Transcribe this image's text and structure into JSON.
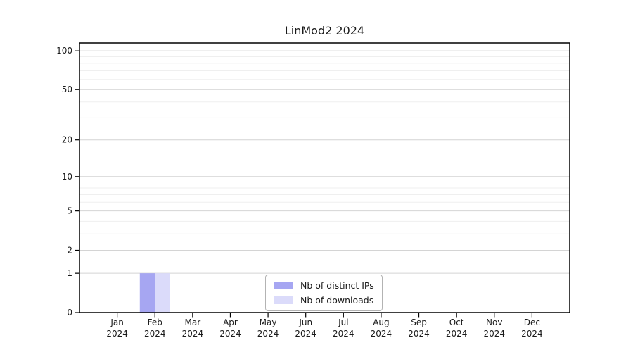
{
  "chart_data": {
    "type": "bar",
    "title": "LinMod2 2024",
    "x": {
      "categories": [
        "Jan",
        "Feb",
        "Mar",
        "Apr",
        "May",
        "Jun",
        "Jul",
        "Aug",
        "Sep",
        "Oct",
        "Nov",
        "Dec"
      ],
      "year_label": "2024"
    },
    "series": [
      {
        "name": "Nb of distinct IPs",
        "color": "#a6a6f2",
        "values": [
          0,
          1,
          0,
          0,
          0,
          0,
          0,
          0,
          0,
          0,
          0,
          0
        ]
      },
      {
        "name": "Nb of downloads",
        "color": "#dbdbfa",
        "values": [
          0,
          1,
          0,
          0,
          0,
          0,
          0,
          0,
          0,
          0,
          0,
          0
        ]
      }
    ],
    "y_axis": {
      "scale": "log1p",
      "major_ticks": [
        0,
        1,
        2,
        5,
        10,
        20,
        50,
        100
      ],
      "minor_ticks": [
        3,
        4,
        6,
        7,
        8,
        9,
        30,
        40,
        60,
        70,
        80,
        90
      ],
      "ylim": [
        0,
        115
      ]
    },
    "legend": {
      "position": "lower center",
      "entries": [
        "Nb of distinct IPs",
        "Nb of downloads"
      ]
    },
    "colors": {
      "major_grid": "#d4d4d4",
      "minor_grid": "#efefef",
      "axis": "#000000",
      "background": "#ffffff"
    },
    "grid": "horizontal only"
  }
}
